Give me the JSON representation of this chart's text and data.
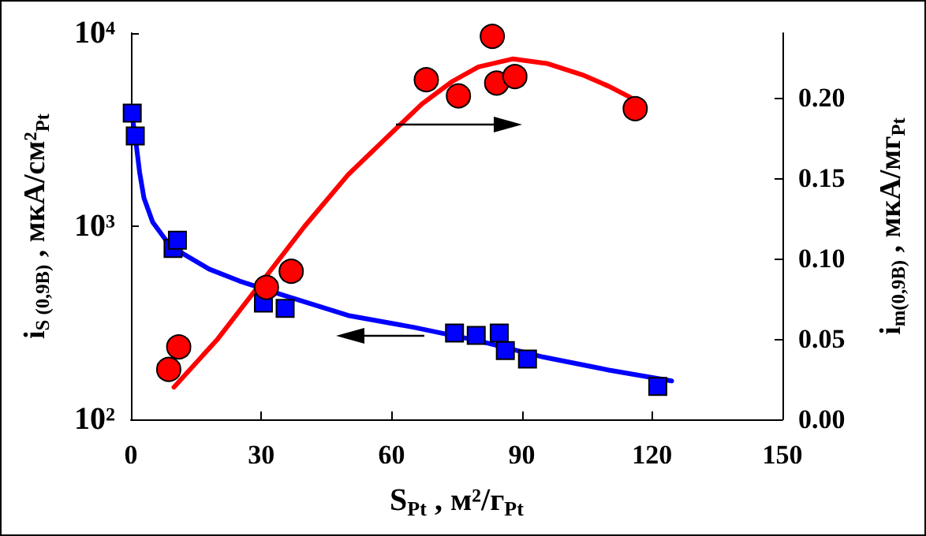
{
  "chart_data": {
    "type": "scatter",
    "xlabel": "S$_{Pt}$ , м²/г$_{Pt}$",
    "ylabel": "i$_{S (0,9В)}$ , мкА/см²$_{Pt}$",
    "y2label": "i$_{m(0,9В)}$ , мкА/мг$_{Pt}$",
    "xlim": [
      0,
      150
    ],
    "xticks": [
      0,
      30,
      60,
      90,
      120,
      150
    ],
    "ylim": [
      100,
      10000
    ],
    "yticks": [
      {
        "value": 100,
        "label": "10²"
      },
      {
        "value": 1000,
        "label": "10³"
      },
      {
        "value": 10000,
        "label": "10⁴"
      }
    ],
    "y2lim": [
      0,
      0.24
    ],
    "y2ticks": [
      {
        "value": 0,
        "label": "0.00"
      },
      {
        "value": 0.05,
        "label": "0.05"
      },
      {
        "value": 0.1,
        "label": "0.10"
      },
      {
        "value": 0.15,
        "label": "0.15"
      },
      {
        "value": 0.2,
        "label": "0.20"
      }
    ],
    "log": "y",
    "series": [
      {
        "marker": "square",
        "color": "#0000ff",
        "x": [
          0.3,
          1,
          9.7,
          10.7,
          30.5,
          35.5,
          74.5,
          79.5,
          84.8,
          86.2,
          91.3,
          121.3
        ],
        "values": [
          3850,
          2930,
          766,
          847,
          400,
          375,
          280,
          272,
          280,
          227,
          205,
          148
        ]
      },
      {
        "type": "line",
        "marker": "none",
        "color": "#0000ff",
        "x": [
          0.3,
          1,
          2,
          3,
          5,
          8,
          12,
          18,
          25,
          35,
          50,
          65,
          80,
          95,
          110,
          124.5
        ],
        "values": [
          3700,
          2900,
          1900,
          1400,
          1050,
          850,
          720,
          600,
          520,
          440,
          345,
          300,
          255,
          210,
          180,
          158
        ]
      },
      {
        "marker": "circle",
        "color": "#ff0000",
        "axis": "y2",
        "x": [
          8.7,
          11,
          31.2,
          36.9,
          68,
          75.4,
          83.2,
          84.2,
          88.4,
          116.1
        ],
        "values": [
          0.031,
          0.045,
          0.082,
          0.092,
          0.211,
          0.201,
          0.238,
          0.209,
          0.213,
          0.193
        ]
      },
      {
        "type": "line",
        "marker": "none",
        "color": "#ff0000",
        "axis": "y2",
        "x": [
          9.9,
          20,
          30,
          40,
          50,
          60,
          67,
          74,
          80,
          88,
          96,
          104,
          110,
          115
        ],
        "values": [
          0.02,
          0.05,
          0.085,
          0.12,
          0.152,
          0.178,
          0.196,
          0.21,
          0.219,
          0.224,
          0.221,
          0.214,
          0.207,
          0.2
        ]
      }
    ]
  }
}
